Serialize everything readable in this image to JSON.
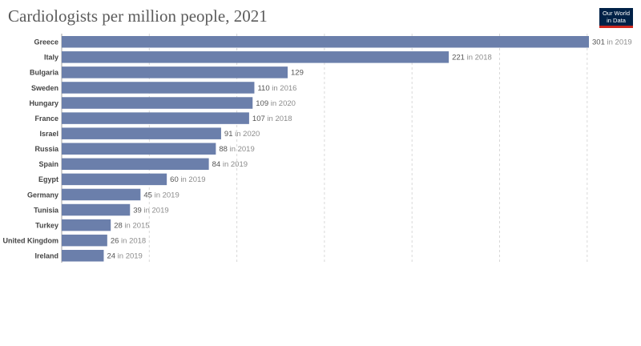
{
  "logo": {
    "line1": "Our World",
    "line2": "in Data",
    "bg_color": "#002147",
    "accent_color": "#ce261e"
  },
  "chart_data": {
    "type": "bar",
    "orientation": "horizontal",
    "title": "Cardiologists per million people, 2021",
    "xlim": [
      0,
      301
    ],
    "grid": true,
    "bar_color": "#6b7fab",
    "categories": [
      "Greece",
      "Italy",
      "Bulgaria",
      "Sweden",
      "Hungary",
      "France",
      "Israel",
      "Russia",
      "Spain",
      "Egypt",
      "Germany",
      "Tunisia",
      "Turkey",
      "United Kingdom",
      "Ireland"
    ],
    "values": [
      301,
      221,
      129,
      110,
      109,
      107,
      91,
      88,
      84,
      60,
      45,
      39,
      28,
      26,
      24
    ],
    "value_notes": [
      "in 2019",
      "in 2018",
      "",
      "in 2016",
      "in 2020",
      "in 2018",
      "in 2020",
      "in 2019",
      "in 2019",
      "in 2019",
      "in 2019",
      "in 2019",
      "in 2015",
      "in 2018",
      "in 2019"
    ]
  }
}
